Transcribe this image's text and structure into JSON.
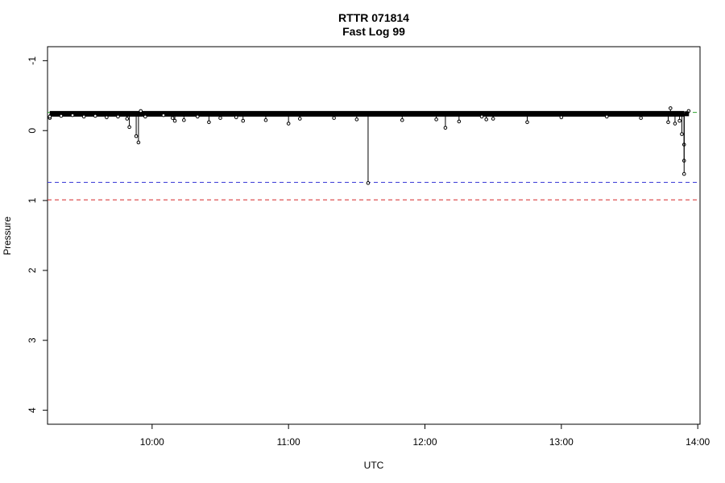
{
  "chart_data": {
    "type": "line",
    "title": "RTTR 071814",
    "subtitle": "Fast Log 99",
    "xlabel": "UTC",
    "ylabel": "Pressure",
    "xlim": [
      "09:14",
      "14:01"
    ],
    "ylim": [
      4.2,
      -1.2
    ],
    "y_reversed": true,
    "grid": false,
    "x_ticks": [
      "10:00",
      "11:00",
      "12:00",
      "13:00",
      "14:00"
    ],
    "y_ticks": [
      "-1",
      "0",
      "1",
      "2",
      "3",
      "4"
    ],
    "reference_lines": [
      {
        "y": -0.26,
        "color": "#2ca02c"
      },
      {
        "y": 0.74,
        "color": "#3a3ad6"
      },
      {
        "y": 0.99,
        "color": "#d62728"
      }
    ],
    "series": [
      {
        "color": "#000000",
        "baseline": {
          "x_start": "09:15",
          "x_end": "13:54",
          "y": -0.24
        },
        "points": [
          {
            "x": "09:15",
            "y": -0.18
          },
          {
            "x": "09:15",
            "y": -0.2
          },
          {
            "x": "09:20",
            "y": -0.21
          },
          {
            "x": "09:25",
            "y": -0.22
          },
          {
            "x": "09:30",
            "y": -0.2
          },
          {
            "x": "09:35",
            "y": -0.21
          },
          {
            "x": "09:40",
            "y": -0.19
          },
          {
            "x": "09:45",
            "y": -0.2
          },
          {
            "x": "09:49",
            "y": -0.17
          },
          {
            "x": "09:50",
            "y": -0.05
          },
          {
            "x": "09:53",
            "y": 0.08
          },
          {
            "x": "09:54",
            "y": 0.17
          },
          {
            "x": "09:55",
            "y": -0.28
          },
          {
            "x": "09:57",
            "y": -0.2
          },
          {
            "x": "10:05",
            "y": -0.22
          },
          {
            "x": "10:09",
            "y": -0.18
          },
          {
            "x": "10:10",
            "y": -0.14
          },
          {
            "x": "10:14",
            "y": -0.15
          },
          {
            "x": "10:20",
            "y": -0.2
          },
          {
            "x": "10:25",
            "y": -0.12
          },
          {
            "x": "10:30",
            "y": -0.18
          },
          {
            "x": "10:37",
            "y": -0.19
          },
          {
            "x": "10:40",
            "y": -0.14
          },
          {
            "x": "10:50",
            "y": -0.15
          },
          {
            "x": "11:00",
            "y": -0.1
          },
          {
            "x": "11:05",
            "y": -0.17
          },
          {
            "x": "11:20",
            "y": -0.18
          },
          {
            "x": "11:30",
            "y": -0.16
          },
          {
            "x": "11:35",
            "y": 0.75
          },
          {
            "x": "11:50",
            "y": -0.15
          },
          {
            "x": "12:05",
            "y": -0.16
          },
          {
            "x": "12:09",
            "y": -0.04
          },
          {
            "x": "12:15",
            "y": -0.13
          },
          {
            "x": "12:25",
            "y": -0.2
          },
          {
            "x": "12:27",
            "y": -0.16
          },
          {
            "x": "12:30",
            "y": -0.17
          },
          {
            "x": "12:45",
            "y": -0.12
          },
          {
            "x": "13:00",
            "y": -0.19
          },
          {
            "x": "13:20",
            "y": -0.2
          },
          {
            "x": "13:35",
            "y": -0.18
          },
          {
            "x": "13:47",
            "y": -0.12
          },
          {
            "x": "13:48",
            "y": -0.32
          },
          {
            "x": "13:50",
            "y": -0.1
          },
          {
            "x": "13:52",
            "y": -0.14
          },
          {
            "x": "13:53",
            "y": 0.05
          },
          {
            "x": "13:54",
            "y": 0.2
          },
          {
            "x": "13:54",
            "y": 0.43
          },
          {
            "x": "13:54",
            "y": 0.62
          },
          {
            "x": "13:55",
            "y": -0.25
          },
          {
            "x": "13:56",
            "y": -0.28
          }
        ]
      }
    ]
  }
}
